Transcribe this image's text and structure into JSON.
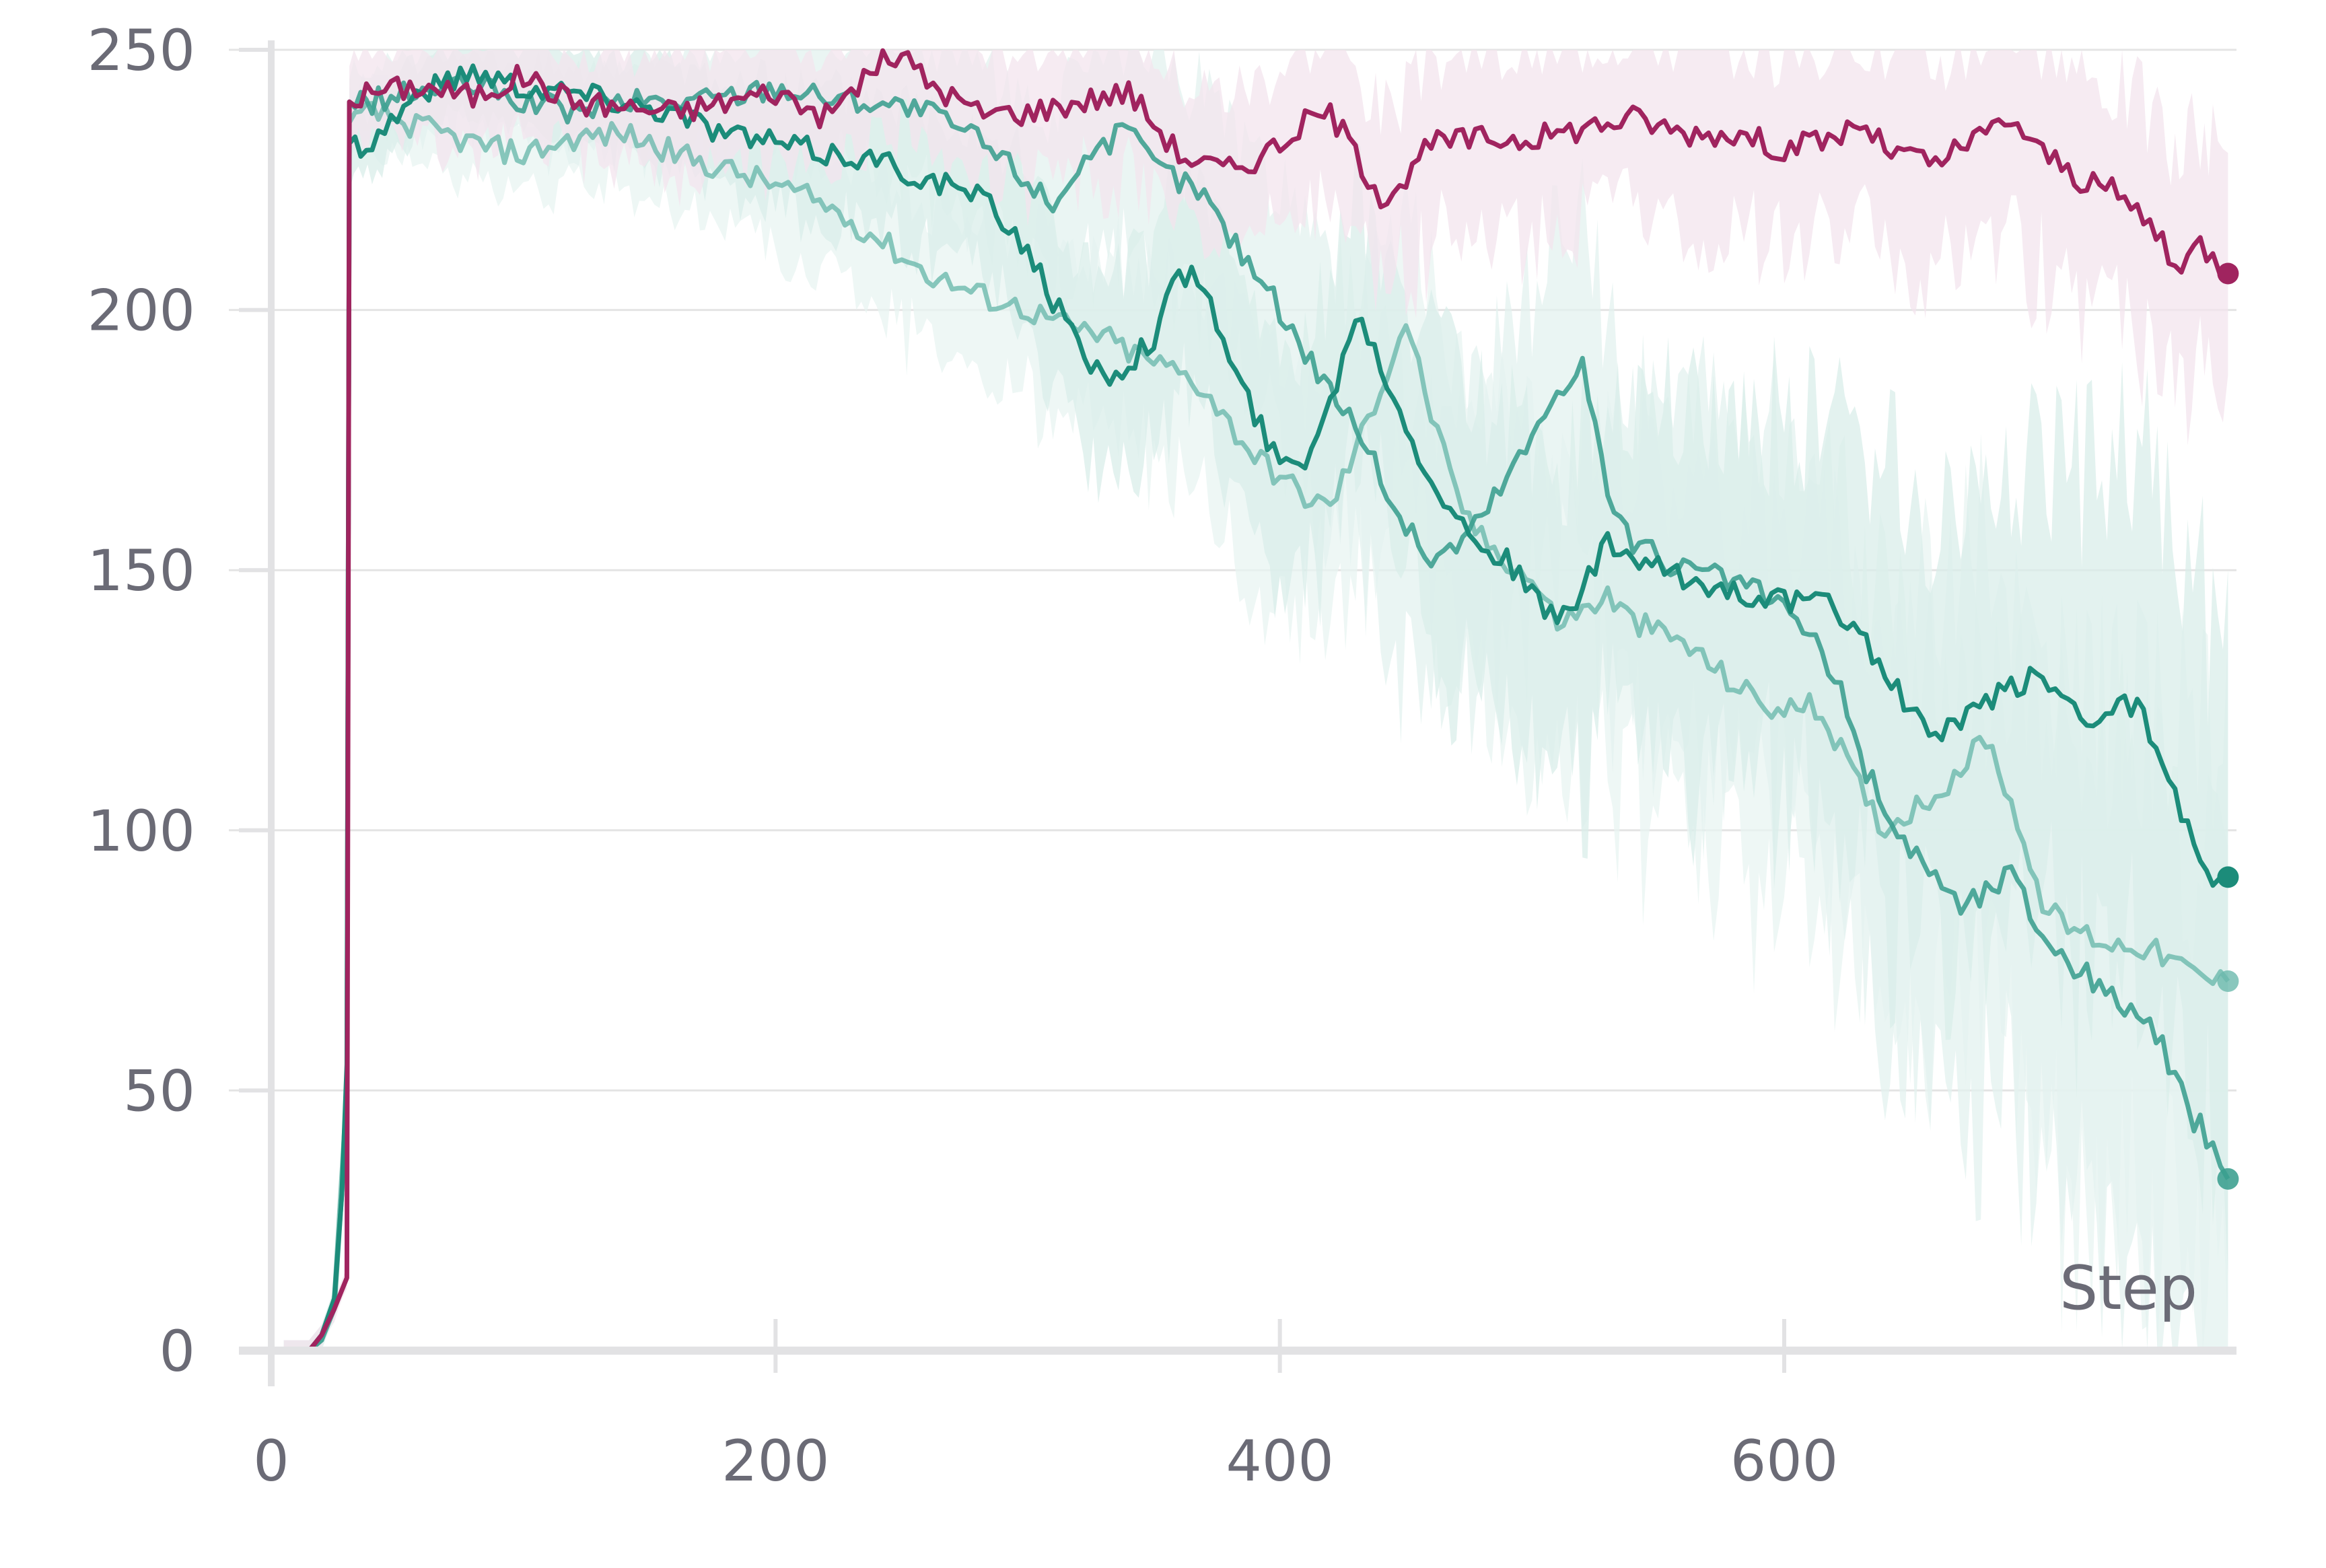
{
  "chart_data": {
    "type": "line",
    "title": "",
    "xlabel": "Step",
    "ylabel": "",
    "xlim": [
      0,
      775
    ],
    "ylim": [
      0,
      250
    ],
    "x_ticks": [
      0,
      200,
      400,
      600
    ],
    "y_ticks": [
      0,
      50,
      100,
      150,
      200,
      250
    ],
    "x_tick_labels": [
      "0",
      "200",
      "400",
      "600"
    ],
    "y_tick_labels": [
      "0",
      "50",
      "100",
      "150",
      "200",
      "250"
    ],
    "grid": true,
    "legend": "none",
    "series": [
      {
        "color": "#a0245f",
        "band_color": "#f3e4ed",
        "opacity": 1.0,
        "points": [
          [
            5,
            0
          ],
          [
            15,
            0
          ],
          [
            20,
            3
          ],
          [
            25,
            8
          ],
          [
            30,
            14
          ],
          [
            31,
            240
          ],
          [
            40,
            242
          ],
          [
            60,
            243
          ],
          [
            80,
            241
          ],
          [
            100,
            245
          ],
          [
            120,
            240
          ],
          [
            140,
            239
          ],
          [
            160,
            238
          ],
          [
            180,
            240
          ],
          [
            200,
            242
          ],
          [
            220,
            237
          ],
          [
            240,
            247
          ],
          [
            250,
            249
          ],
          [
            260,
            244
          ],
          [
            280,
            238
          ],
          [
            300,
            238
          ],
          [
            320,
            240
          ],
          [
            340,
            242
          ],
          [
            350,
            236
          ],
          [
            360,
            230
          ],
          [
            370,
            228
          ],
          [
            380,
            227
          ],
          [
            390,
            229
          ],
          [
            400,
            232
          ],
          [
            410,
            236
          ],
          [
            420,
            238
          ],
          [
            430,
            230
          ],
          [
            440,
            222
          ],
          [
            450,
            225
          ],
          [
            460,
            232
          ],
          [
            480,
            233
          ],
          [
            500,
            233
          ],
          [
            520,
            235
          ],
          [
            540,
            237
          ],
          [
            560,
            234
          ],
          [
            580,
            234
          ],
          [
            600,
            231
          ],
          [
            620,
            233
          ],
          [
            630,
            236
          ],
          [
            640,
            231
          ],
          [
            660,
            228
          ],
          [
            680,
            234
          ],
          [
            690,
            237
          ],
          [
            700,
            231
          ],
          [
            710,
            228
          ],
          [
            720,
            224
          ],
          [
            730,
            223
          ],
          [
            740,
            219
          ],
          [
            750,
            214
          ],
          [
            755,
            206
          ],
          [
            760,
            210
          ],
          [
            765,
            213
          ],
          [
            770,
            210
          ],
          [
            776,
            207
          ]
        ]
      },
      {
        "color": "#1c8c7a",
        "band_color": "#d9edea",
        "opacity": 1.0,
        "points": [
          [
            5,
            0
          ],
          [
            15,
            0
          ],
          [
            20,
            3
          ],
          [
            25,
            10
          ],
          [
            28,
            30
          ],
          [
            30,
            55
          ],
          [
            31,
            232
          ],
          [
            40,
            232
          ],
          [
            50,
            238
          ],
          [
            60,
            242
          ],
          [
            80,
            246
          ],
          [
            100,
            243
          ],
          [
            120,
            242
          ],
          [
            140,
            240
          ],
          [
            160,
            238
          ],
          [
            180,
            234
          ],
          [
            200,
            232
          ],
          [
            220,
            230
          ],
          [
            240,
            229
          ],
          [
            260,
            225
          ],
          [
            280,
            222
          ],
          [
            300,
            212
          ],
          [
            310,
            202
          ],
          [
            320,
            193
          ],
          [
            330,
            187
          ],
          [
            340,
            190
          ],
          [
            350,
            195
          ],
          [
            360,
            207
          ],
          [
            370,
            205
          ],
          [
            380,
            190
          ],
          [
            390,
            180
          ],
          [
            400,
            170
          ],
          [
            410,
            172
          ],
          [
            420,
            182
          ],
          [
            430,
            200
          ],
          [
            440,
            190
          ],
          [
            450,
            178
          ],
          [
            460,
            168
          ],
          [
            470,
            160
          ],
          [
            480,
            155
          ],
          [
            490,
            152
          ],
          [
            500,
            145
          ],
          [
            510,
            140
          ],
          [
            520,
            146
          ],
          [
            530,
            155
          ],
          [
            540,
            152
          ],
          [
            560,
            148
          ],
          [
            580,
            146
          ],
          [
            600,
            144
          ],
          [
            620,
            143
          ],
          [
            630,
            138
          ],
          [
            640,
            130
          ],
          [
            650,
            123
          ],
          [
            660,
            118
          ],
          [
            670,
            120
          ],
          [
            680,
            125
          ],
          [
            690,
            127
          ],
          [
            700,
            130
          ],
          [
            710,
            126
          ],
          [
            720,
            122
          ],
          [
            730,
            123
          ],
          [
            740,
            125
          ],
          [
            750,
            111
          ],
          [
            760,
            101
          ],
          [
            770,
            89
          ],
          [
            776,
            91
          ]
        ]
      },
      {
        "color": "#3a9e8e",
        "band_color": "#e3f1ef",
        "opacity": 0.88,
        "points": [
          [
            5,
            0
          ],
          [
            15,
            0
          ],
          [
            20,
            2
          ],
          [
            25,
            8
          ],
          [
            30,
            45
          ],
          [
            31,
            240
          ],
          [
            40,
            240
          ],
          [
            60,
            242
          ],
          [
            80,
            243
          ],
          [
            100,
            240
          ],
          [
            120,
            238
          ],
          [
            140,
            240
          ],
          [
            160,
            240
          ],
          [
            180,
            241
          ],
          [
            200,
            243
          ],
          [
            220,
            241
          ],
          [
            240,
            240
          ],
          [
            260,
            238
          ],
          [
            280,
            233
          ],
          [
            300,
            225
          ],
          [
            310,
            220
          ],
          [
            320,
            228
          ],
          [
            330,
            232
          ],
          [
            340,
            234
          ],
          [
            350,
            228
          ],
          [
            360,
            225
          ],
          [
            370,
            222
          ],
          [
            380,
            214
          ],
          [
            390,
            208
          ],
          [
            400,
            200
          ],
          [
            410,
            192
          ],
          [
            420,
            185
          ],
          [
            430,
            178
          ],
          [
            440,
            168
          ],
          [
            450,
            158
          ],
          [
            460,
            152
          ],
          [
            470,
            155
          ],
          [
            480,
            160
          ],
          [
            490,
            168
          ],
          [
            500,
            175
          ],
          [
            510,
            185
          ],
          [
            520,
            190
          ],
          [
            530,
            165
          ],
          [
            540,
            155
          ],
          [
            560,
            150
          ],
          [
            580,
            148
          ],
          [
            600,
            143
          ],
          [
            610,
            137
          ],
          [
            620,
            130
          ],
          [
            630,
            114
          ],
          [
            640,
            104
          ],
          [
            650,
            96
          ],
          [
            660,
            92
          ],
          [
            670,
            85
          ],
          [
            680,
            88
          ],
          [
            690,
            92
          ],
          [
            700,
            82
          ],
          [
            710,
            76
          ],
          [
            720,
            72
          ],
          [
            730,
            68
          ],
          [
            740,
            65
          ],
          [
            750,
            58
          ],
          [
            760,
            46
          ],
          [
            770,
            40
          ],
          [
            776,
            33
          ]
        ]
      },
      {
        "color": "#6cb9ad",
        "band_color": "#e8f4f2",
        "opacity": 0.8,
        "points": [
          [
            5,
            0
          ],
          [
            15,
            0
          ],
          [
            20,
            2
          ],
          [
            25,
            10
          ],
          [
            30,
            50
          ],
          [
            31,
            236
          ],
          [
            40,
            238
          ],
          [
            60,
            235
          ],
          [
            80,
            232
          ],
          [
            100,
            230
          ],
          [
            120,
            233
          ],
          [
            140,
            234
          ],
          [
            160,
            230
          ],
          [
            180,
            227
          ],
          [
            200,
            224
          ],
          [
            220,
            220
          ],
          [
            240,
            214
          ],
          [
            260,
            207
          ],
          [
            280,
            203
          ],
          [
            300,
            200
          ],
          [
            310,
            198
          ],
          [
            320,
            196
          ],
          [
            330,
            195
          ],
          [
            340,
            192
          ],
          [
            350,
            190
          ],
          [
            360,
            188
          ],
          [
            370,
            185
          ],
          [
            380,
            178
          ],
          [
            390,
            172
          ],
          [
            400,
            168
          ],
          [
            410,
            164
          ],
          [
            420,
            162
          ],
          [
            430,
            173
          ],
          [
            440,
            185
          ],
          [
            450,
            198
          ],
          [
            460,
            180
          ],
          [
            470,
            164
          ],
          [
            480,
            156
          ],
          [
            490,
            152
          ],
          [
            500,
            148
          ],
          [
            510,
            140
          ],
          [
            520,
            142
          ],
          [
            530,
            145
          ],
          [
            540,
            140
          ],
          [
            560,
            136
          ],
          [
            570,
            132
          ],
          [
            580,
            128
          ],
          [
            600,
            122
          ],
          [
            610,
            126
          ],
          [
            620,
            118
          ],
          [
            630,
            108
          ],
          [
            640,
            100
          ],
          [
            650,
            104
          ],
          [
            660,
            107
          ],
          [
            670,
            112
          ],
          [
            680,
            118
          ],
          [
            690,
            106
          ],
          [
            700,
            88
          ],
          [
            710,
            82
          ],
          [
            720,
            80
          ],
          [
            730,
            78
          ],
          [
            740,
            78
          ],
          [
            750,
            76
          ],
          [
            760,
            73
          ],
          [
            770,
            71
          ],
          [
            776,
            71
          ]
        ]
      }
    ]
  }
}
